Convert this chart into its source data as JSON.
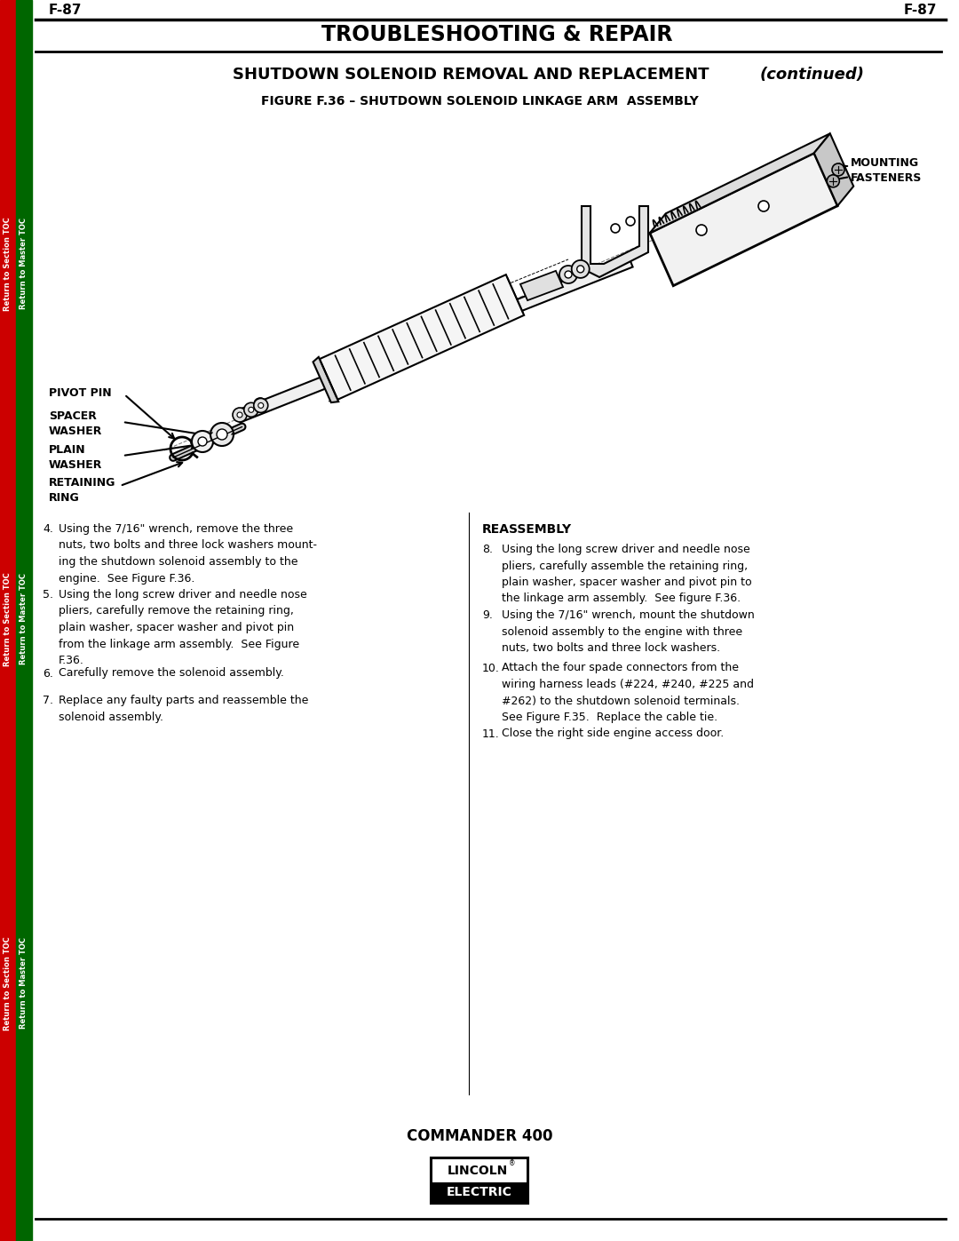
{
  "page_number": "F-87",
  "main_title": "TROUBLESHOOTING & REPAIR",
  "section_title": "SHUTDOWN SOLENOID REMOVAL AND REPLACEMENT",
  "section_title_italic": "(continued)",
  "figure_title": "FIGURE F.36 – SHUTDOWN SOLENOID LINKAGE ARM  ASSEMBLY",
  "label_mounting": "MOUNTING\nFASTENERS",
  "label_pivot": "PIVOT PIN",
  "label_spacer": "SPACER\nWASHER",
  "label_plain": "PLAIN\nWASHER",
  "label_retaining": "RETAINING\nRING",
  "footer_model": "COMMANDER 400",
  "bg_color": "#ffffff",
  "sidebar_red": "#cc0000",
  "sidebar_green": "#006600",
  "sidebar_text1": "Return to Section TOC",
  "sidebar_text2": "Return to Master TOC",
  "left_col_items": [
    [
      4,
      "Using the 7/16\" wrench, remove the three\nnuts, two bolts and three lock washers mount-\ning the shutdown solenoid assembly to the\nengine.  See Figure F.36."
    ],
    [
      5,
      "Using the long screw driver and needle nose\npliers, carefully remove the retaining ring,\nplain washer, spacer washer and pivot pin\nfrom the linkage arm assembly.  See Figure\nF.36."
    ],
    [
      6,
      "Carefully remove the solenoid assembly."
    ],
    [
      7,
      "Replace any faulty parts and reassemble the\nsolenoid assembly."
    ]
  ],
  "right_col_title": "REASSEMBLY",
  "right_col_items": [
    [
      8,
      "Using the long screw driver and needle nose\npliers, carefully assemble the retaining ring,\nplain washer, spacer washer and pivot pin to\nthe linkage arm assembly.  See figure F.36."
    ],
    [
      9,
      "Using the 7/16\" wrench, mount the shutdown\nsolenoid assembly to the engine with three\nnuts, two bolts and three lock washers."
    ],
    [
      10,
      "Attach the four spade connectors from the\nwiring harness leads (#224, #240, #225 and\n#262) to the shutdown solenoid terminals.\nSee Figure F.35.  Replace the cable tie."
    ],
    [
      11,
      "Close the right side engine access door."
    ]
  ]
}
